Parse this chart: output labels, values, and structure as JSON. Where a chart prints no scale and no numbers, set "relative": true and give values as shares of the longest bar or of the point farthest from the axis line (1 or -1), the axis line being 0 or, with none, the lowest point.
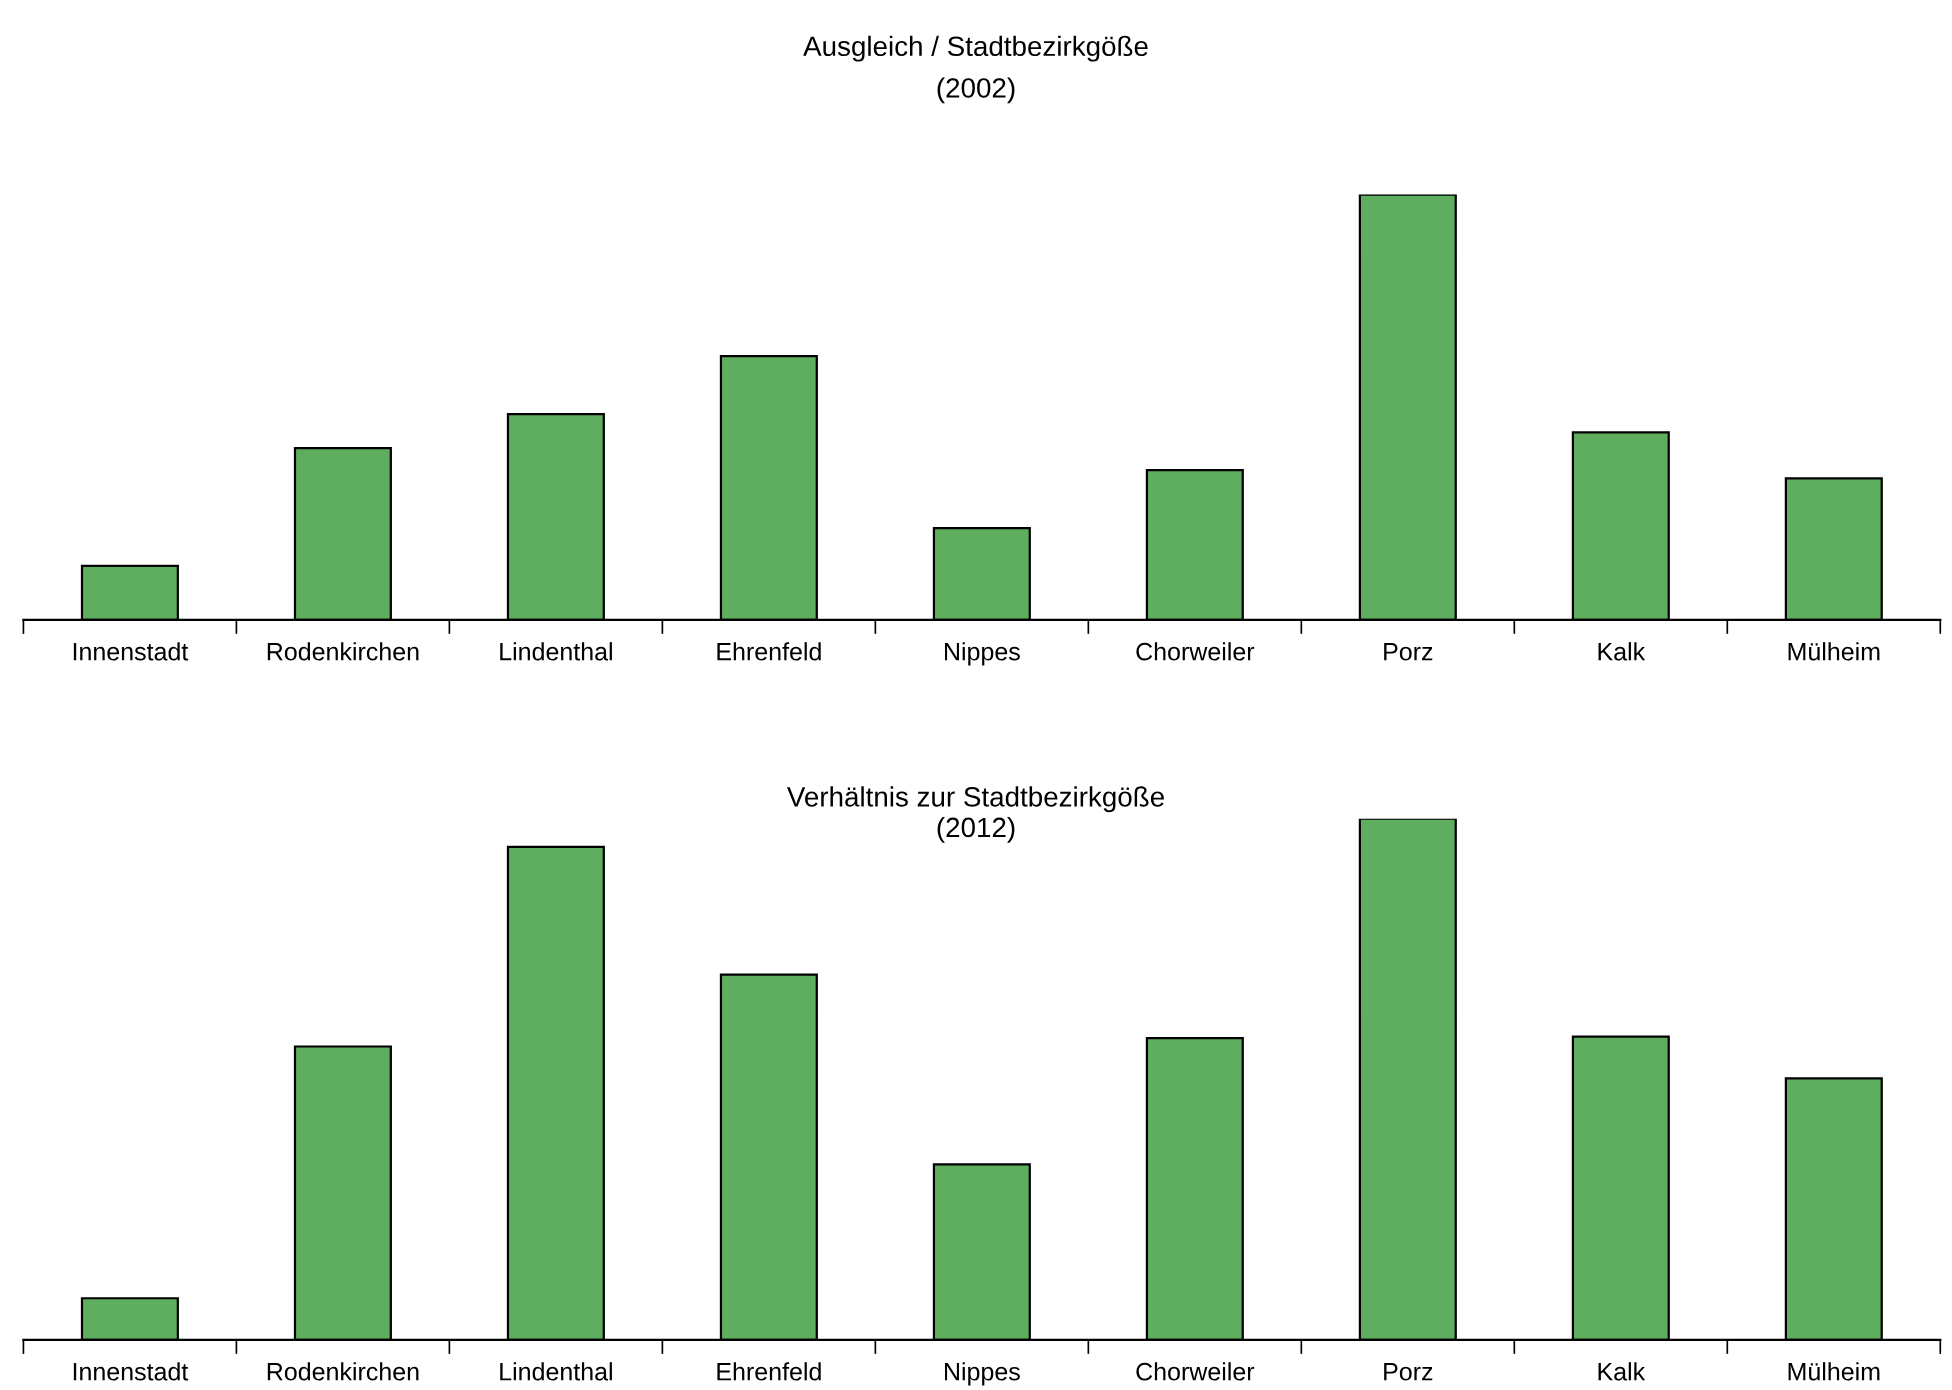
{
  "chart_data": [
    {
      "type": "bar",
      "title": "Ausgleich / Stadtbezirkgöße",
      "subtitle": "(2002)",
      "relative": true,
      "color": "#5fae5f",
      "grid": false,
      "legend": false,
      "categories": [
        "Innenstadt",
        "Rodenkirchen",
        "Lindenthal",
        "Ehrenfeld",
        "Nippes",
        "Chorweiler",
        "Porz",
        "Kalk",
        "Mülheim"
      ],
      "values": [
        0.127,
        0.404,
        0.484,
        0.62,
        0.216,
        0.352,
        1,
        0.441,
        0.333
      ]
    },
    {
      "type": "bar",
      "title": "Verhältnis zur Stadtbezirkgöße",
      "subtitle": "(2012)",
      "relative": true,
      "color": "#5fae5f",
      "grid": false,
      "legend": false,
      "categories": [
        "Innenstadt",
        "Rodenkirchen",
        "Lindenthal",
        "Ehrenfeld",
        "Nippes",
        "Chorweiler",
        "Porz",
        "Kalk",
        "Mülheim"
      ],
      "values": [
        0.08,
        0.563,
        0.946,
        0.701,
        0.337,
        0.579,
        1,
        0.582,
        0.502
      ]
    }
  ]
}
